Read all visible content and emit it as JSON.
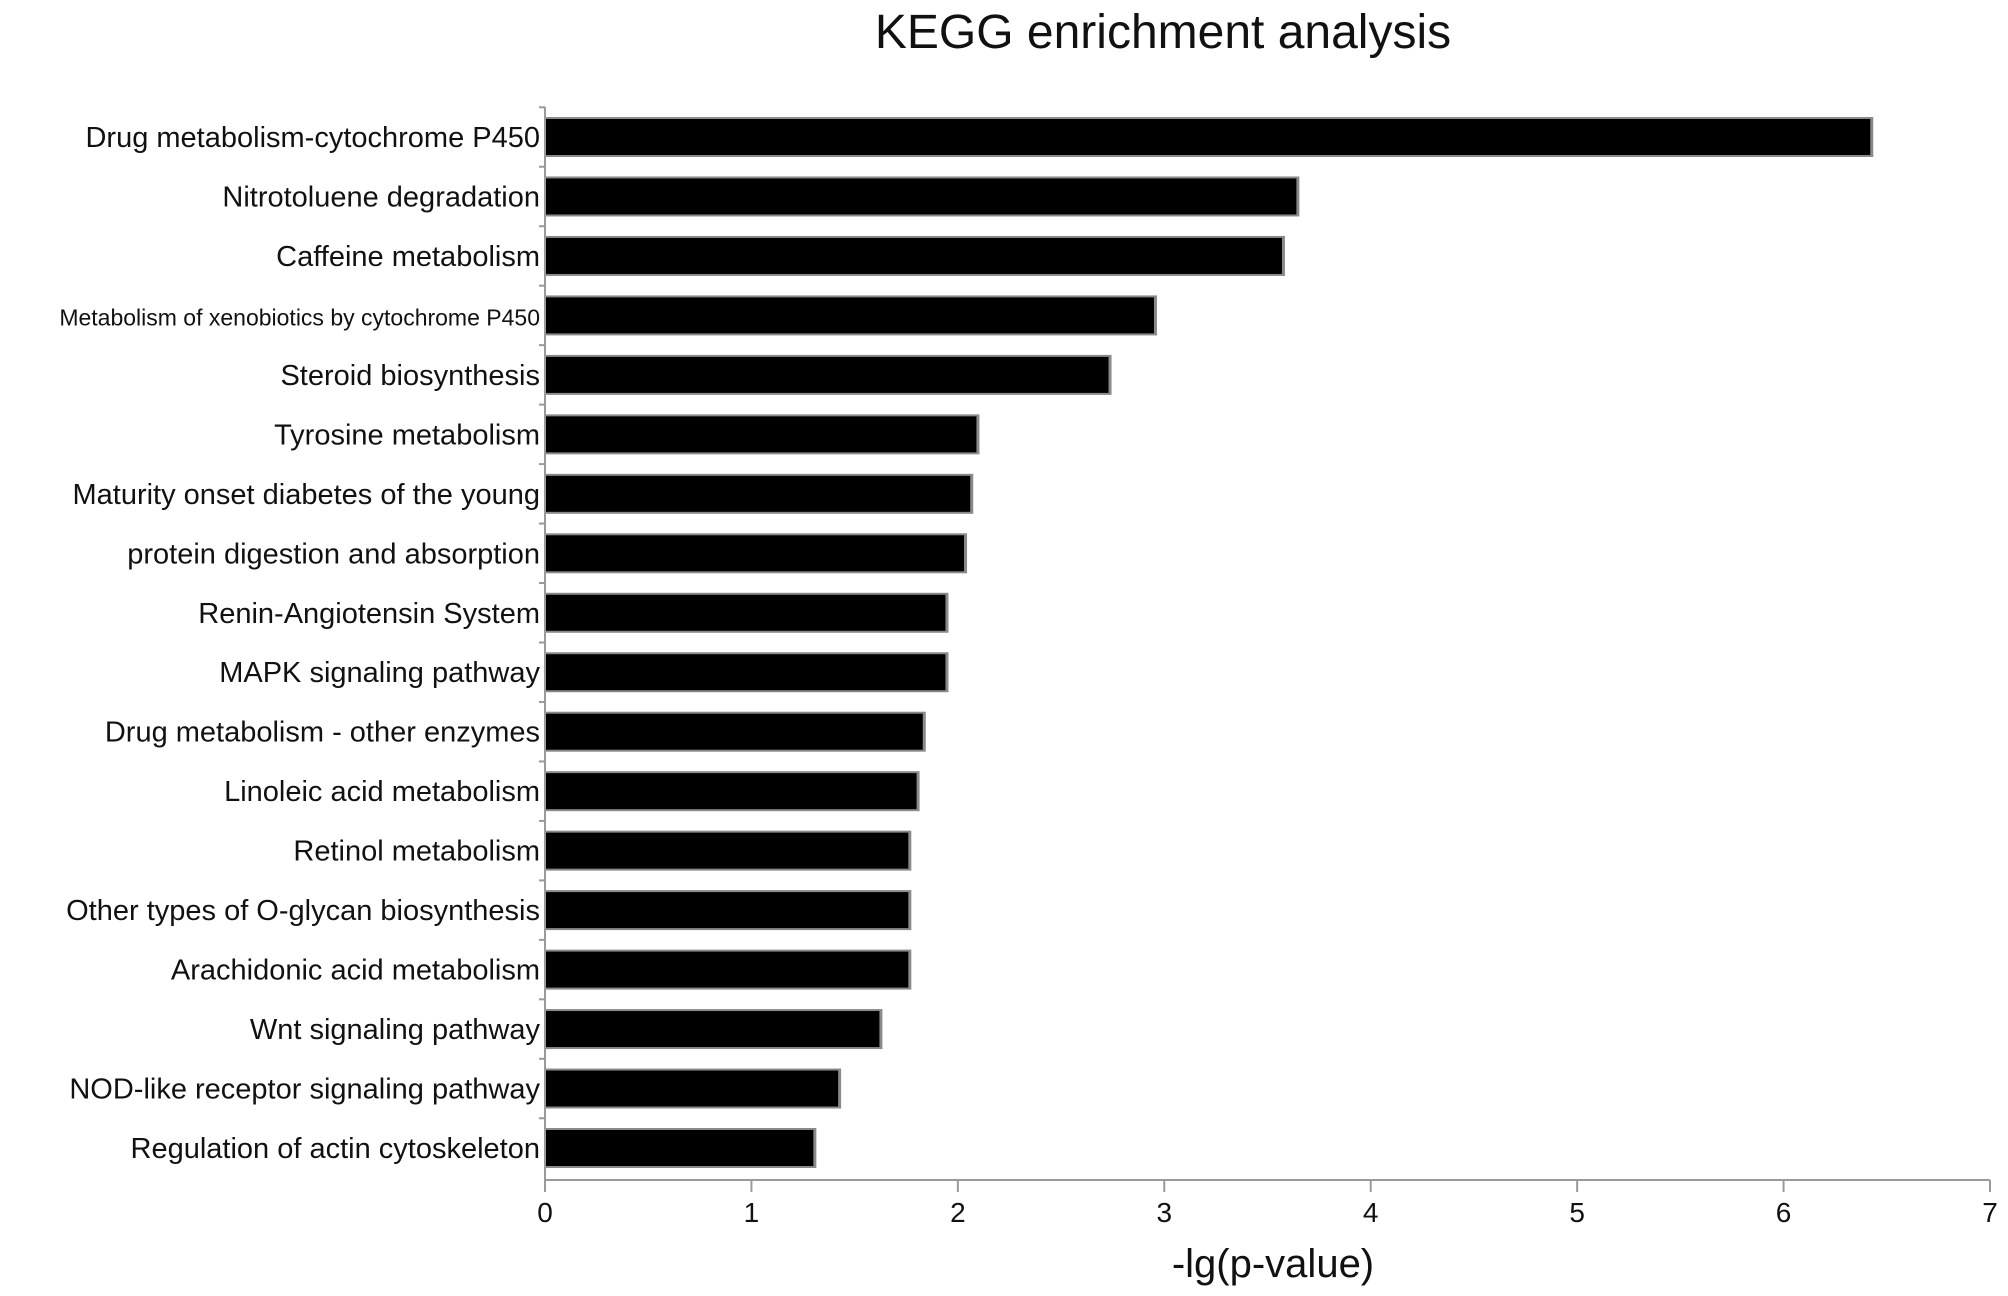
{
  "chart_data": {
    "type": "bar",
    "orientation": "horizontal",
    "title": "KEGG enrichment analysis",
    "xlabel": "-lg(p-value)",
    "ylabel": "",
    "xlim": [
      0,
      7
    ],
    "xticks": [
      0,
      1,
      2,
      3,
      4,
      5,
      6,
      7
    ],
    "grid": false,
    "legend": "none",
    "bar_color": "#000000",
    "categories": [
      "Drug metabolism-cytochrome P450",
      "Nitrotoluene degradation",
      "Caffeine metabolism",
      "Metabolism of xenobiotics by cytochrome P450",
      "Steroid biosynthesis",
      "Tyrosine metabolism",
      "Maturity onset diabetes of the young",
      "protein digestion and absorption",
      "Renin-Angiotensin System",
      "MAPK signaling pathway",
      "Drug metabolism - other enzymes",
      "Linoleic acid metabolism",
      "Retinol metabolism",
      "Other types of O-glycan biosynthesis",
      "Arachidonic acid metabolism",
      "Wnt signaling pathway",
      "NOD-like receptor signaling pathway",
      "Regulation of actin cytoskeleton"
    ],
    "values": [
      6.42,
      3.64,
      3.57,
      2.95,
      2.73,
      2.09,
      2.06,
      2.03,
      1.94,
      1.94,
      1.83,
      1.8,
      1.76,
      1.76,
      1.76,
      1.62,
      1.42,
      1.3
    ]
  }
}
